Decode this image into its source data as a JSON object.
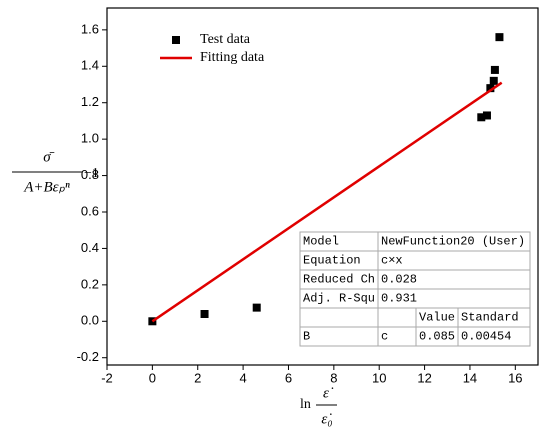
{
  "chart_data": {
    "type": "scatter",
    "xlim": [
      -2,
      17
    ],
    "ylim": [
      -0.24,
      1.72
    ],
    "xticks": [
      -2,
      0,
      2,
      4,
      6,
      8,
      10,
      12,
      14,
      16
    ],
    "yticks": [
      -0.2,
      {
        "value": 0,
        "label": "0.0"
      },
      0.2,
      0.4,
      0.6,
      0.8,
      {
        "value": 1,
        "label": "1.0"
      },
      1.2,
      1.4,
      1.6
    ],
    "xlabel": {
      "prefix": "ln",
      "numerator": "ε̇",
      "denominator": "ε̇₀"
    },
    "ylabel": {
      "numerator": "σ̄",
      "denominator": "A+Bεₚⁿ",
      "suffix": "−1"
    },
    "legend": "upper left",
    "series": [
      {
        "name": "Test data",
        "color": "#000000",
        "type": "scatter",
        "x": [
          0,
          2.3,
          4.6,
          14.5,
          14.75,
          14.9,
          15.05,
          15.1,
          15.3
        ],
        "values": [
          0,
          0.04,
          0.075,
          1.12,
          1.13,
          1.28,
          1.32,
          1.38,
          1.56
        ]
      },
      {
        "name": "Fitting data",
        "color": "#e00000",
        "type": "line",
        "x": [
          0,
          15.4
        ],
        "values": [
          0,
          1.31
        ]
      }
    ]
  },
  "fit_table": {
    "stats": [
      {
        "label": "Model",
        "value": "NewFunction20 (User)"
      },
      {
        "label": "Equation",
        "value": "c×x"
      },
      {
        "label": "Reduced Ch",
        "value": 0.028
      },
      {
        "label": "Adj. R-Squ",
        "value": 0.931
      }
    ],
    "param_header": [
      "Value",
      "Standard"
    ],
    "params": [
      {
        "name": "B",
        "symbol": "c",
        "value": 0.085,
        "error": 0.00454
      }
    ]
  }
}
